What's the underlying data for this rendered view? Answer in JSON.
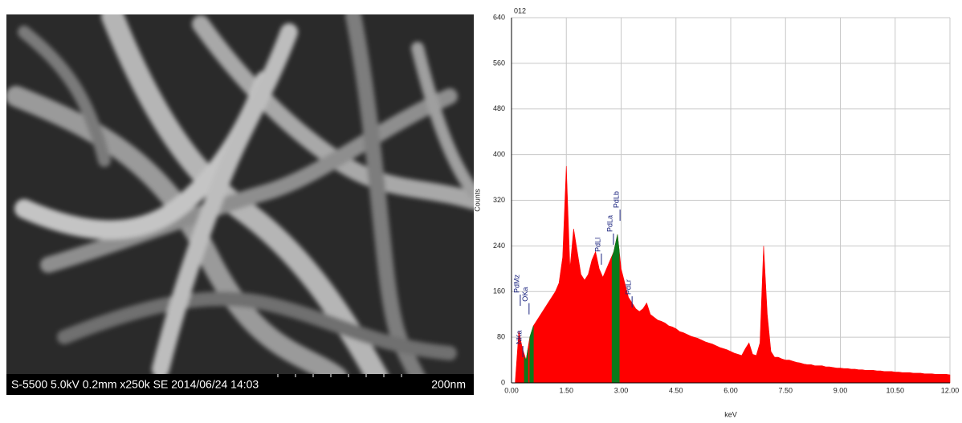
{
  "sem_image": {
    "caption": "S-5500 5.0kV 0.2mm x250k SE 2014/06/24 14:03",
    "scale": "200nm"
  },
  "chart_data": {
    "type": "area",
    "title": "012",
    "y_label": "Counts",
    "x_label": "keV",
    "xlim": [
      0,
      12
    ],
    "ylim": [
      0,
      640
    ],
    "xticks": [
      {
        "value": 0,
        "label": "0.00"
      },
      {
        "value": 1.5,
        "label": "1.50"
      },
      {
        "value": 3,
        "label": "3.00"
      },
      {
        "value": 4.5,
        "label": "4.50"
      },
      {
        "value": 6,
        "label": "6.00"
      },
      {
        "value": 7.5,
        "label": "7.50"
      },
      {
        "value": 9,
        "label": "9.00"
      },
      {
        "value": 10.5,
        "label": "10.50"
      },
      {
        "value": 12,
        "label": "12.00"
      }
    ],
    "yticks": [
      0,
      80,
      160,
      240,
      320,
      400,
      480,
      560,
      640
    ],
    "grid": true,
    "series": [
      {
        "color": "#ff0000",
        "x": [
          0,
          0.1,
          0.2,
          0.3,
          0.4,
          0.5,
          0.6,
          0.7,
          0.8,
          0.9,
          1,
          1.1,
          1.2,
          1.3,
          1.4,
          1.5,
          1.6,
          1.7,
          1.8,
          1.9,
          2,
          2.1,
          2.2,
          2.3,
          2.4,
          2.5,
          2.6,
          2.7,
          2.8,
          2.9,
          3,
          3.1,
          3.2,
          3.3,
          3.4,
          3.5,
          3.6,
          3.7,
          3.8,
          3.9,
          4,
          4.1,
          4.2,
          4.3,
          4.4,
          4.5,
          4.6,
          4.7,
          4.8,
          4.9,
          5,
          5.1,
          5.2,
          5.3,
          5.4,
          5.5,
          5.6,
          5.7,
          5.8,
          5.9,
          6,
          6.1,
          6.2,
          6.3,
          6.4,
          6.5,
          6.6,
          6.7,
          6.8,
          6.9,
          7,
          7.1,
          7.2,
          7.3,
          7.4,
          7.5,
          7.6,
          7.7,
          7.8,
          7.9,
          8,
          8.1,
          8.2,
          8.3,
          8.4,
          8.5,
          8.6,
          8.7,
          8.8,
          8.9,
          9,
          9.1,
          9.2,
          9.3,
          9.4,
          9.5,
          9.6,
          9.7,
          9.8,
          9.9,
          10,
          10.1,
          10.2,
          10.3,
          10.4,
          10.5,
          10.6,
          10.7,
          10.8,
          10.9,
          11,
          11.1,
          11.2,
          11.3,
          11.4,
          11.5,
          11.6,
          11.7,
          11.8,
          11.9,
          12
        ],
        "values": [
          0,
          0,
          90,
          60,
          40,
          80,
          100,
          110,
          120,
          130,
          140,
          150,
          160,
          175,
          220,
          380,
          200,
          270,
          230,
          190,
          180,
          190,
          215,
          230,
          200,
          185,
          200,
          215,
          230,
          260,
          200,
          175,
          150,
          140,
          130,
          125,
          130,
          140,
          120,
          115,
          110,
          108,
          105,
          100,
          98,
          95,
          90,
          88,
          85,
          82,
          80,
          78,
          75,
          72,
          70,
          68,
          65,
          62,
          60,
          58,
          55,
          52,
          50,
          48,
          60,
          70,
          50,
          48,
          70,
          240,
          120,
          55,
          45,
          45,
          42,
          40,
          40,
          38,
          36,
          35,
          33,
          32,
          32,
          30,
          30,
          30,
          28,
          28,
          27,
          26,
          26,
          25,
          25,
          24,
          24,
          23,
          23,
          22,
          22,
          22,
          21,
          21,
          20,
          20,
          20,
          19,
          19,
          18,
          18,
          18,
          17,
          17,
          17,
          16,
          16,
          16,
          15,
          15,
          15,
          15,
          14
        ]
      },
      {
        "color": "#0a7a1a",
        "x": [
          0.35,
          0.4,
          0.45
        ],
        "values": [
          45,
          40,
          60
        ]
      },
      {
        "color": "#0a7a1a",
        "x": [
          0.5,
          0.55,
          0.6
        ],
        "values": [
          80,
          90,
          100
        ]
      },
      {
        "color": "#0a7a1a",
        "x": [
          2.75,
          2.8,
          2.9,
          2.95
        ],
        "values": [
          220,
          230,
          260,
          230
        ]
      }
    ],
    "annotations": [
      {
        "text": "PdMz",
        "x": 0.24,
        "y": 135
      },
      {
        "text": "NKa",
        "x": 0.31,
        "y": 45
      },
      {
        "text": "OKa",
        "x": 0.48,
        "y": 120
      },
      {
        "text": "PdLl",
        "x": 2.46,
        "y": 207
      },
      {
        "text": "PdLa",
        "x": 2.79,
        "y": 242
      },
      {
        "text": "PdLb",
        "x": 2.97,
        "y": 284
      },
      {
        "text": "PdLr",
        "x": 3.3,
        "y": 132
      }
    ]
  }
}
